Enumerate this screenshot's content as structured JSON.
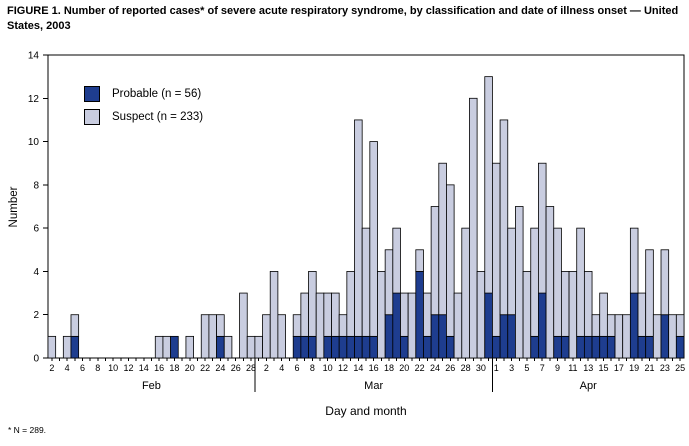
{
  "figure": {
    "title": "FIGURE 1. Number of reported cases* of severe acute respiratory syndrome, by classification and date of illness onset — United States, 2003",
    "footnote": "* N = 289."
  },
  "chart_data": {
    "type": "stacked-bar",
    "title": "FIGURE 1. Number of reported cases* of severe acute respiratory syndrome, by classification and date of illness onset — United States, 2003",
    "xlabel": "Day and month",
    "ylabel": "Number",
    "ylim": [
      0,
      14
    ],
    "ytick_step": 2,
    "grid": false,
    "legend_position": "upper-left-inside",
    "legend": [
      {
        "name": "Probable (n = 56)",
        "series": "Probable",
        "color": "#1e3d8f"
      },
      {
        "name": "Suspect (n = 233)",
        "series": "Suspect",
        "color": "#c9cde0"
      }
    ],
    "months": [
      {
        "name": "Feb",
        "start_day": 2,
        "end_day": 28,
        "label_parity": "even"
      },
      {
        "name": "Mar",
        "start_day": 1,
        "end_day": 31,
        "label_parity": "even"
      },
      {
        "name": "Apr",
        "start_day": 1,
        "end_day": 25,
        "label_parity": "odd"
      }
    ],
    "cases_note": "entries are [month, day, probable, suspect]; days not listed have zero cases",
    "cases": [
      [
        "Feb",
        2,
        0,
        1
      ],
      [
        "Feb",
        4,
        0,
        1
      ],
      [
        "Feb",
        5,
        1,
        1
      ],
      [
        "Feb",
        16,
        0,
        1
      ],
      [
        "Feb",
        17,
        0,
        1
      ],
      [
        "Feb",
        18,
        1,
        0
      ],
      [
        "Feb",
        20,
        0,
        1
      ],
      [
        "Feb",
        22,
        0,
        2
      ],
      [
        "Feb",
        23,
        0,
        2
      ],
      [
        "Feb",
        24,
        1,
        1
      ],
      [
        "Feb",
        25,
        0,
        1
      ],
      [
        "Feb",
        27,
        0,
        3
      ],
      [
        "Feb",
        28,
        0,
        1
      ],
      [
        "Mar",
        1,
        0,
        1
      ],
      [
        "Mar",
        2,
        0,
        2
      ],
      [
        "Mar",
        3,
        0,
        4
      ],
      [
        "Mar",
        4,
        0,
        2
      ],
      [
        "Mar",
        6,
        1,
        1
      ],
      [
        "Mar",
        7,
        1,
        2
      ],
      [
        "Mar",
        8,
        1,
        3
      ],
      [
        "Mar",
        9,
        0,
        3
      ],
      [
        "Mar",
        10,
        1,
        2
      ],
      [
        "Mar",
        11,
        1,
        2
      ],
      [
        "Mar",
        12,
        1,
        1
      ],
      [
        "Mar",
        13,
        1,
        3
      ],
      [
        "Mar",
        14,
        1,
        10
      ],
      [
        "Mar",
        15,
        1,
        5
      ],
      [
        "Mar",
        16,
        1,
        9
      ],
      [
        "Mar",
        17,
        0,
        4
      ],
      [
        "Mar",
        18,
        2,
        3
      ],
      [
        "Mar",
        19,
        3,
        3
      ],
      [
        "Mar",
        20,
        1,
        2
      ],
      [
        "Mar",
        21,
        0,
        3
      ],
      [
        "Mar",
        22,
        4,
        1
      ],
      [
        "Mar",
        23,
        1,
        2
      ],
      [
        "Mar",
        24,
        2,
        5
      ],
      [
        "Mar",
        25,
        2,
        7
      ],
      [
        "Mar",
        26,
        1,
        7
      ],
      [
        "Mar",
        27,
        0,
        3
      ],
      [
        "Mar",
        28,
        0,
        6
      ],
      [
        "Mar",
        29,
        0,
        12
      ],
      [
        "Mar",
        30,
        0,
        4
      ],
      [
        "Mar",
        31,
        3,
        10
      ],
      [
        "Apr",
        1,
        1,
        8
      ],
      [
        "Apr",
        2,
        2,
        9
      ],
      [
        "Apr",
        3,
        2,
        4
      ],
      [
        "Apr",
        4,
        0,
        7
      ],
      [
        "Apr",
        5,
        0,
        4
      ],
      [
        "Apr",
        6,
        1,
        5
      ],
      [
        "Apr",
        7,
        3,
        6
      ],
      [
        "Apr",
        8,
        0,
        7
      ],
      [
        "Apr",
        9,
        1,
        5
      ],
      [
        "Apr",
        10,
        1,
        3
      ],
      [
        "Apr",
        11,
        0,
        4
      ],
      [
        "Apr",
        12,
        1,
        5
      ],
      [
        "Apr",
        13,
        1,
        3
      ],
      [
        "Apr",
        14,
        1,
        1
      ],
      [
        "Apr",
        15,
        1,
        2
      ],
      [
        "Apr",
        16,
        1,
        1
      ],
      [
        "Apr",
        17,
        0,
        2
      ],
      [
        "Apr",
        18,
        0,
        2
      ],
      [
        "Apr",
        19,
        3,
        3
      ],
      [
        "Apr",
        20,
        1,
        2
      ],
      [
        "Apr",
        21,
        1,
        4
      ],
      [
        "Apr",
        22,
        0,
        2
      ],
      [
        "Apr",
        23,
        2,
        3
      ],
      [
        "Apr",
        24,
        0,
        2
      ],
      [
        "Apr",
        25,
        1,
        1
      ]
    ]
  }
}
